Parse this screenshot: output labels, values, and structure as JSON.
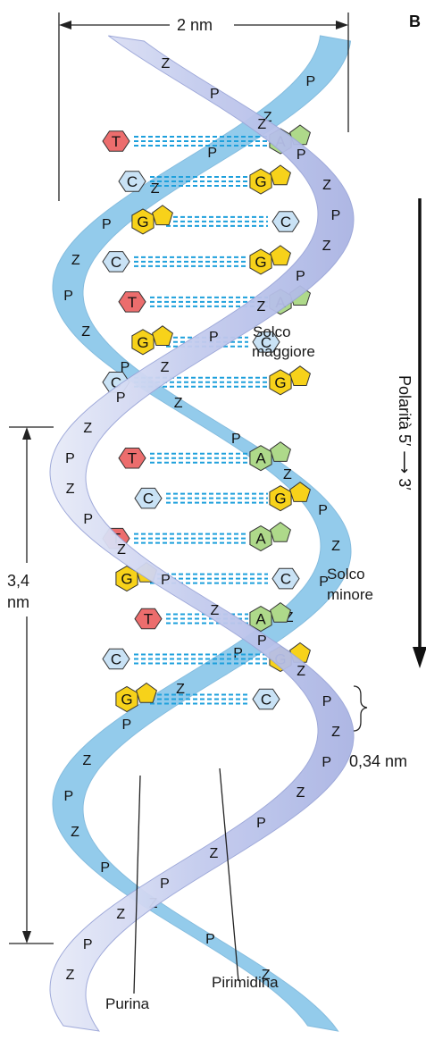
{
  "panel_letter": "B",
  "width_label": "2 nm",
  "pitch_label_line1": "3,4",
  "pitch_label_line2": "nm",
  "rise_label": "0,34 nm",
  "major_groove_line1": "Solco",
  "major_groove_line2": "maggiore",
  "minor_groove_line1": "Solco",
  "minor_groove_line2": "minore",
  "polarity_text": "Polarità  5′ ⟶ 3′",
  "purine_label": "Purina",
  "pyrimidine_label": "Pirimidina",
  "colors": {
    "front_strand": "#c9d0ef",
    "back_strand": "#8ec9ea",
    "guanine": "#f7d21a",
    "cytosine": "#c9e2f5",
    "thymine": "#ec6d6d",
    "adenine": "#aed98a",
    "hbond": "#1ea0dc"
  },
  "base_pairs": [
    {
      "left": "T",
      "right": "A"
    },
    {
      "left": "C",
      "right": "G"
    },
    {
      "left": "G",
      "right": "C"
    },
    {
      "left": "C",
      "right": "G"
    },
    {
      "left": "T",
      "right": "A"
    },
    {
      "left": "G",
      "right": "C"
    },
    {
      "left": "C",
      "right": "G"
    },
    {
      "left": "T",
      "right": "A"
    },
    {
      "left": "C",
      "right": "G"
    },
    {
      "left": "T",
      "right": "A"
    },
    {
      "left": "G",
      "right": "C"
    },
    {
      "left": "T",
      "right": "A"
    },
    {
      "left": "C",
      "right": "G"
    },
    {
      "left": "G",
      "right": "C"
    }
  ]
}
